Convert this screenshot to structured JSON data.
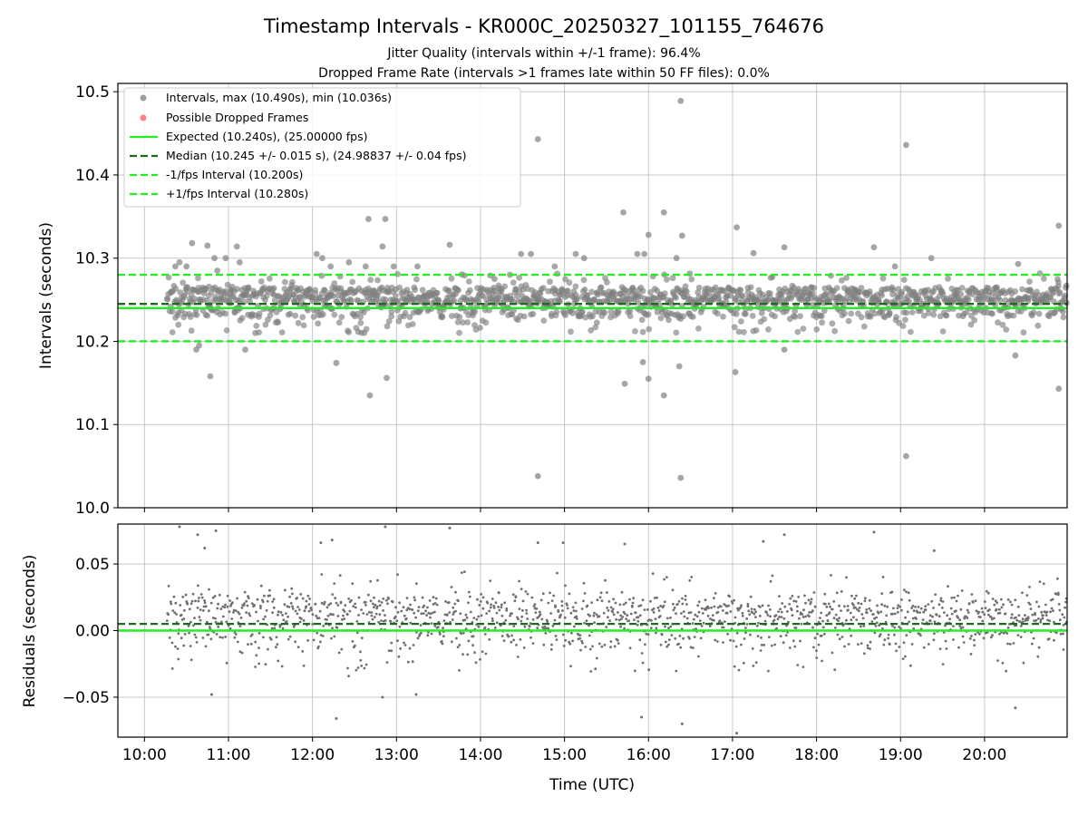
{
  "chart_data": [
    {
      "type": "scatter",
      "title": "Timestamp Intervals - KR000C_20250327_101155_764676",
      "subtitles": [
        "Jitter Quality (intervals within +/-1 frame): 96.4%",
        "Dropped Frame Rate (intervals >1 frames late within 50 FF files): 0.0%"
      ],
      "xlabel": "",
      "ylabel": "Intervals (seconds)",
      "xlim": [
        "09:41",
        "20:59"
      ],
      "ylim": [
        10.0,
        10.51
      ],
      "yticks": [
        10.0,
        10.1,
        10.2,
        10.3,
        10.4,
        10.5
      ],
      "grid": true,
      "legend_position": "top-left",
      "colors": {
        "points": "#808080",
        "dropped": "#ff6060",
        "expected": "#22ee22",
        "median": "#1b6b1b",
        "bounds": "#22ee22"
      },
      "series": [
        {
          "name": "Intervals, max (10.490s), min (10.036s)",
          "marker": "circle",
          "bulk_band": [
            10.21,
            10.285
          ],
          "center": 10.255,
          "time_range": [
            "10:16",
            "20:59"
          ],
          "points": [
            {
              "x": "10:22",
              "y": 10.29
            },
            {
              "x": "10:25",
              "y": 10.295
            },
            {
              "x": "10:30",
              "y": 10.29
            },
            {
              "x": "10:34",
              "y": 10.318
            },
            {
              "x": "10:37",
              "y": 10.19
            },
            {
              "x": "10:39",
              "y": 10.195
            },
            {
              "x": "10:45",
              "y": 10.315
            },
            {
              "x": "10:47",
              "y": 10.158
            },
            {
              "x": "10:50",
              "y": 10.3
            },
            {
              "x": "10:52",
              "y": 10.285
            },
            {
              "x": "10:58",
              "y": 10.3
            },
            {
              "x": "11:06",
              "y": 10.314
            },
            {
              "x": "11:08",
              "y": 10.295
            },
            {
              "x": "11:12",
              "y": 10.19
            },
            {
              "x": "12:03",
              "y": 10.305
            },
            {
              "x": "12:07",
              "y": 10.3
            },
            {
              "x": "12:13",
              "y": 10.29
            },
            {
              "x": "12:17",
              "y": 10.174
            },
            {
              "x": "12:26",
              "y": 10.295
            },
            {
              "x": "12:38",
              "y": 10.29
            },
            {
              "x": "12:40",
              "y": 10.347
            },
            {
              "x": "12:41",
              "y": 10.135
            },
            {
              "x": "12:50",
              "y": 10.314
            },
            {
              "x": "12:52",
              "y": 10.347
            },
            {
              "x": "12:53",
              "y": 10.156
            },
            {
              "x": "12:58",
              "y": 10.29
            },
            {
              "x": "13:15",
              "y": 10.29
            },
            {
              "x": "13:38",
              "y": 10.316
            },
            {
              "x": "14:10",
              "y": 10.275
            },
            {
              "x": "14:21",
              "y": 10.28
            },
            {
              "x": "14:29",
              "y": 10.305
            },
            {
              "x": "14:36",
              "y": 10.305
            },
            {
              "x": "14:41",
              "y": 10.443
            },
            {
              "x": "14:41",
              "y": 10.038
            },
            {
              "x": "14:53",
              "y": 10.29
            },
            {
              "x": "15:08",
              "y": 10.305
            },
            {
              "x": "15:14",
              "y": 10.3
            },
            {
              "x": "15:42",
              "y": 10.355
            },
            {
              "x": "15:43",
              "y": 10.149
            },
            {
              "x": "15:52",
              "y": 10.305
            },
            {
              "x": "15:57",
              "y": 10.305
            },
            {
              "x": "15:56",
              "y": 10.175
            },
            {
              "x": "16:00",
              "y": 10.328
            },
            {
              "x": "16:00",
              "y": 10.155
            },
            {
              "x": "16:11",
              "y": 10.355
            },
            {
              "x": "16:11",
              "y": 10.135
            },
            {
              "x": "16:20",
              "y": 10.3
            },
            {
              "x": "16:22",
              "y": 10.17
            },
            {
              "x": "16:23",
              "y": 10.489
            },
            {
              "x": "16:23",
              "y": 10.036
            },
            {
              "x": "16:24",
              "y": 10.327
            },
            {
              "x": "17:03",
              "y": 10.337
            },
            {
              "x": "17:02",
              "y": 10.163
            },
            {
              "x": "17:15",
              "y": 10.306
            },
            {
              "x": "17:37",
              "y": 10.313
            },
            {
              "x": "17:37",
              "y": 10.19
            },
            {
              "x": "18:41",
              "y": 10.313
            },
            {
              "x": "18:56",
              "y": 10.29
            },
            {
              "x": "19:04",
              "y": 10.436
            },
            {
              "x": "19:04",
              "y": 10.062
            },
            {
              "x": "19:22",
              "y": 10.3
            },
            {
              "x": "20:24",
              "y": 10.293
            },
            {
              "x": "20:22",
              "y": 10.183
            },
            {
              "x": "20:53",
              "y": 10.339
            },
            {
              "x": "20:53",
              "y": 10.143
            }
          ]
        },
        {
          "name": "Possible Dropped Frames",
          "marker": "circle",
          "points": []
        },
        {
          "name": "Expected (10.240s), (25.00000 fps)",
          "line": "solid",
          "y": 10.24
        },
        {
          "name": "Median (10.245 +/- 0.015 s), (24.98837 +/- 0.04 fps)",
          "line": "dashed",
          "y": 10.245
        },
        {
          "name": "-1/fps Interval (10.200s)",
          "line": "dashed",
          "y": 10.2
        },
        {
          "name": "+1/fps Interval (10.280s)",
          "line": "dashed",
          "y": 10.28
        }
      ]
    },
    {
      "type": "scatter",
      "title": "",
      "xlabel": "Time (UTC)",
      "ylabel": "Residuals (seconds)",
      "xlim": [
        "09:41",
        "20:59"
      ],
      "ylim": [
        -0.08,
        0.08
      ],
      "yticks": [
        -0.05,
        0.0,
        0.05
      ],
      "ytick_labels": [
        "−0.05",
        "0.00",
        "0.05"
      ],
      "xticks": [
        "10:00",
        "11:00",
        "12:00",
        "13:00",
        "14:00",
        "15:00",
        "16:00",
        "17:00",
        "18:00",
        "19:00",
        "20:00"
      ],
      "grid": true,
      "colors": {
        "points": "#707070",
        "zero": "#22ee22",
        "median": "#1b6b1b"
      },
      "reference_lines": [
        {
          "line": "solid",
          "y": 0.0
        },
        {
          "line": "dashed",
          "y": 0.005
        }
      ],
      "series": [
        {
          "marker": "dot",
          "bulk_band": [
            -0.03,
            0.045
          ],
          "center": 0.015,
          "time_range": [
            "10:16",
            "20:59"
          ],
          "points": [
            {
              "x": "10:25",
              "y": 0.078
            },
            {
              "x": "10:38",
              "y": 0.072
            },
            {
              "x": "10:43",
              "y": 0.062
            },
            {
              "x": "10:48",
              "y": -0.048
            },
            {
              "x": "10:51",
              "y": 0.075
            },
            {
              "x": "12:06",
              "y": 0.066
            },
            {
              "x": "12:14",
              "y": 0.068
            },
            {
              "x": "12:17",
              "y": -0.066
            },
            {
              "x": "12:52",
              "y": 0.078
            },
            {
              "x": "12:50",
              "y": -0.05
            },
            {
              "x": "13:14",
              "y": -0.048
            },
            {
              "x": "13:38",
              "y": 0.077
            },
            {
              "x": "14:41",
              "y": 0.066
            },
            {
              "x": "14:59",
              "y": 0.066
            },
            {
              "x": "15:43",
              "y": 0.065
            },
            {
              "x": "15:55",
              "y": -0.065
            },
            {
              "x": "16:24",
              "y": -0.07
            },
            {
              "x": "17:03",
              "y": -0.077
            },
            {
              "x": "17:22",
              "y": 0.067
            },
            {
              "x": "17:37",
              "y": 0.072
            },
            {
              "x": "18:41",
              "y": 0.074
            },
            {
              "x": "19:24",
              "y": 0.06
            },
            {
              "x": "20:22",
              "y": -0.058
            }
          ]
        }
      ]
    }
  ]
}
